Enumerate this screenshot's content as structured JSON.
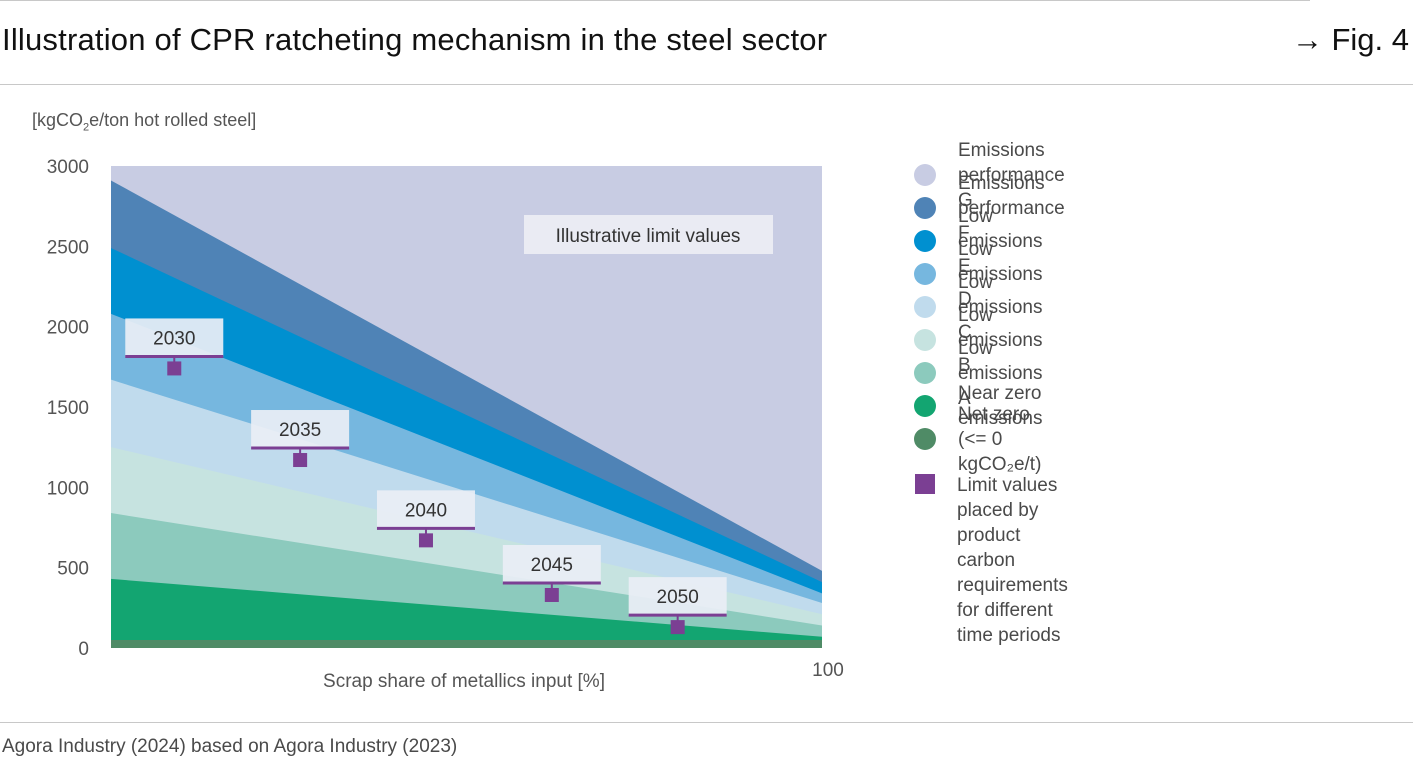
{
  "header": {
    "title": "Illustration of CPR ratcheting mechanism in the steel sector",
    "fig_ref": "→ Fig. 4"
  },
  "unit_label": {
    "prefix": "[kgCO",
    "subscript": "2",
    "suffix": "e/ton hot rolled steel]"
  },
  "source": "Agora Industry (2024) based on Agora Industry (2023)",
  "legend": {
    "items": [
      {
        "label": "Emissions performance G",
        "color": "#c8cce3"
      },
      {
        "label": "Emissions performance F",
        "color": "#4f83b6"
      },
      {
        "label": "Low emissions E",
        "color": "#0090d0"
      },
      {
        "label": "Low emissions D",
        "color": "#76b7df"
      },
      {
        "label": "Low emissions C",
        "color": "#c0dbed"
      },
      {
        "label": "Low emissions B",
        "color": "#c6e3e0"
      },
      {
        "label": "Low emissions A",
        "color": "#8ccabd"
      },
      {
        "label": "Near zero emissions",
        "color": "#13a571"
      },
      {
        "label": "Net zero (<= 0 kgCO₂e/t)",
        "color": "#4f8b66"
      }
    ],
    "limit_item": {
      "label_line1": "Limit values placed by product carbon",
      "label_line2": "requirements for different time periods",
      "color": "#7b3f93"
    }
  },
  "chart_data": {
    "type": "area",
    "xlabel": "Scrap share of metallics input [%]",
    "x_tick_label": "100",
    "xlim": [
      0,
      100
    ],
    "ylim": [
      0,
      3000
    ],
    "y_ticks": [
      "0",
      "500",
      "1000",
      "1500",
      "2000",
      "2500",
      "3000"
    ],
    "y_tick_values": [
      0,
      500,
      1000,
      1500,
      2000,
      2500,
      3000
    ],
    "annotation": "Illustrative limit values",
    "bands": [
      {
        "name": "Emissions performance G",
        "color": "#c8cce3",
        "y0": 3000,
        "y100": 3000
      },
      {
        "name": "Emissions performance F",
        "color": "#4f83b6",
        "y0": 2910,
        "y100": 480
      },
      {
        "name": "Low emissions E",
        "color": "#0090d0",
        "y0": 2490,
        "y100": 410
      },
      {
        "name": "Low emissions D",
        "color": "#76b7df",
        "y0": 2080,
        "y100": 340
      },
      {
        "name": "Low emissions C",
        "color": "#c0dbed",
        "y0": 1670,
        "y100": 280
      },
      {
        "name": "Low emissions B",
        "color": "#c6e3e0",
        "y0": 1250,
        "y100": 210
      },
      {
        "name": "Low emissions A",
        "color": "#8ccabd",
        "y0": 840,
        "y100": 140
      },
      {
        "name": "Near zero emissions",
        "color": "#13a571",
        "y0": 430,
        "y100": 70
      },
      {
        "name": "Net zero (<= 0 kgCO₂e/t)",
        "color": "#4f8b66",
        "y0": 50,
        "y100": 50
      }
    ],
    "limit_values": [
      {
        "year": "2030",
        "x": 8.9,
        "y": 1740
      },
      {
        "year": "2035",
        "x": 26.6,
        "y": 1170
      },
      {
        "year": "2040",
        "x": 44.3,
        "y": 670
      },
      {
        "year": "2045",
        "x": 62.0,
        "y": 330
      },
      {
        "year": "2050",
        "x": 79.7,
        "y": 130
      }
    ],
    "grid": false
  }
}
